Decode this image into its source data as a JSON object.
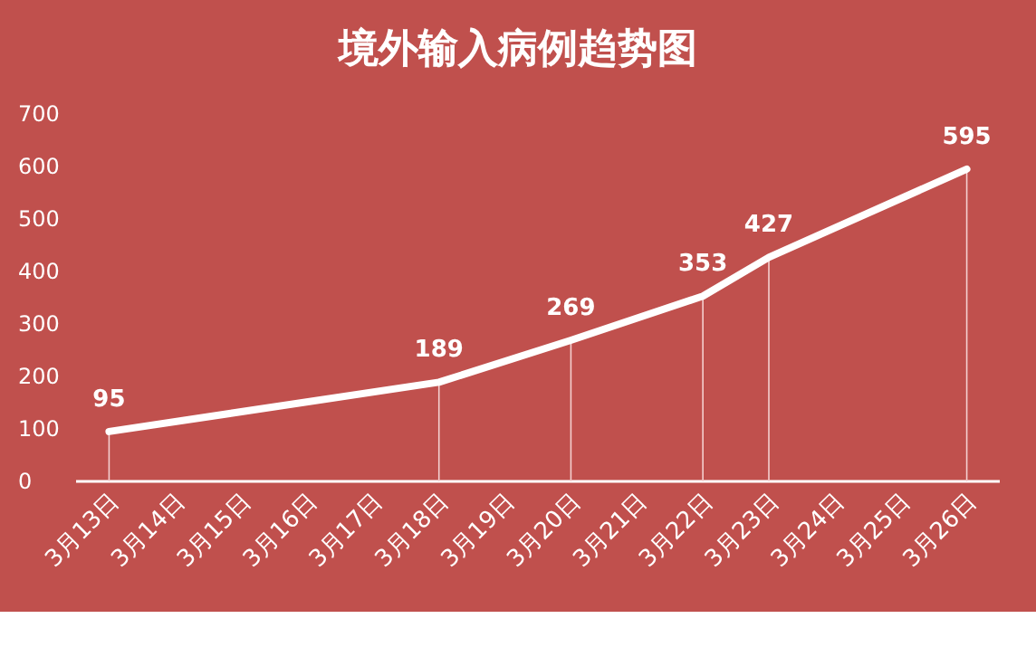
{
  "chart_data": {
    "type": "line",
    "title": "境外输入病例趋势图",
    "categories": [
      "3月13日",
      "3月14日",
      "3月15日",
      "3月16日",
      "3月17日",
      "3月18日",
      "3月19日",
      "3月20日",
      "3月21日",
      "3月22日",
      "3月23日",
      "3月24日",
      "3月25日",
      "3月26日"
    ],
    "series": [
      {
        "color": "#ffffff",
        "values": [
          95,
          null,
          null,
          null,
          null,
          189,
          null,
          269,
          null,
          353,
          427,
          null,
          null,
          595
        ]
      }
    ],
    "ylim": [
      0,
      700
    ],
    "yticks": [
      0,
      100,
      200,
      300,
      400,
      500,
      600,
      700
    ],
    "data_labels": true,
    "marker": "none",
    "line_style": "solid"
  }
}
